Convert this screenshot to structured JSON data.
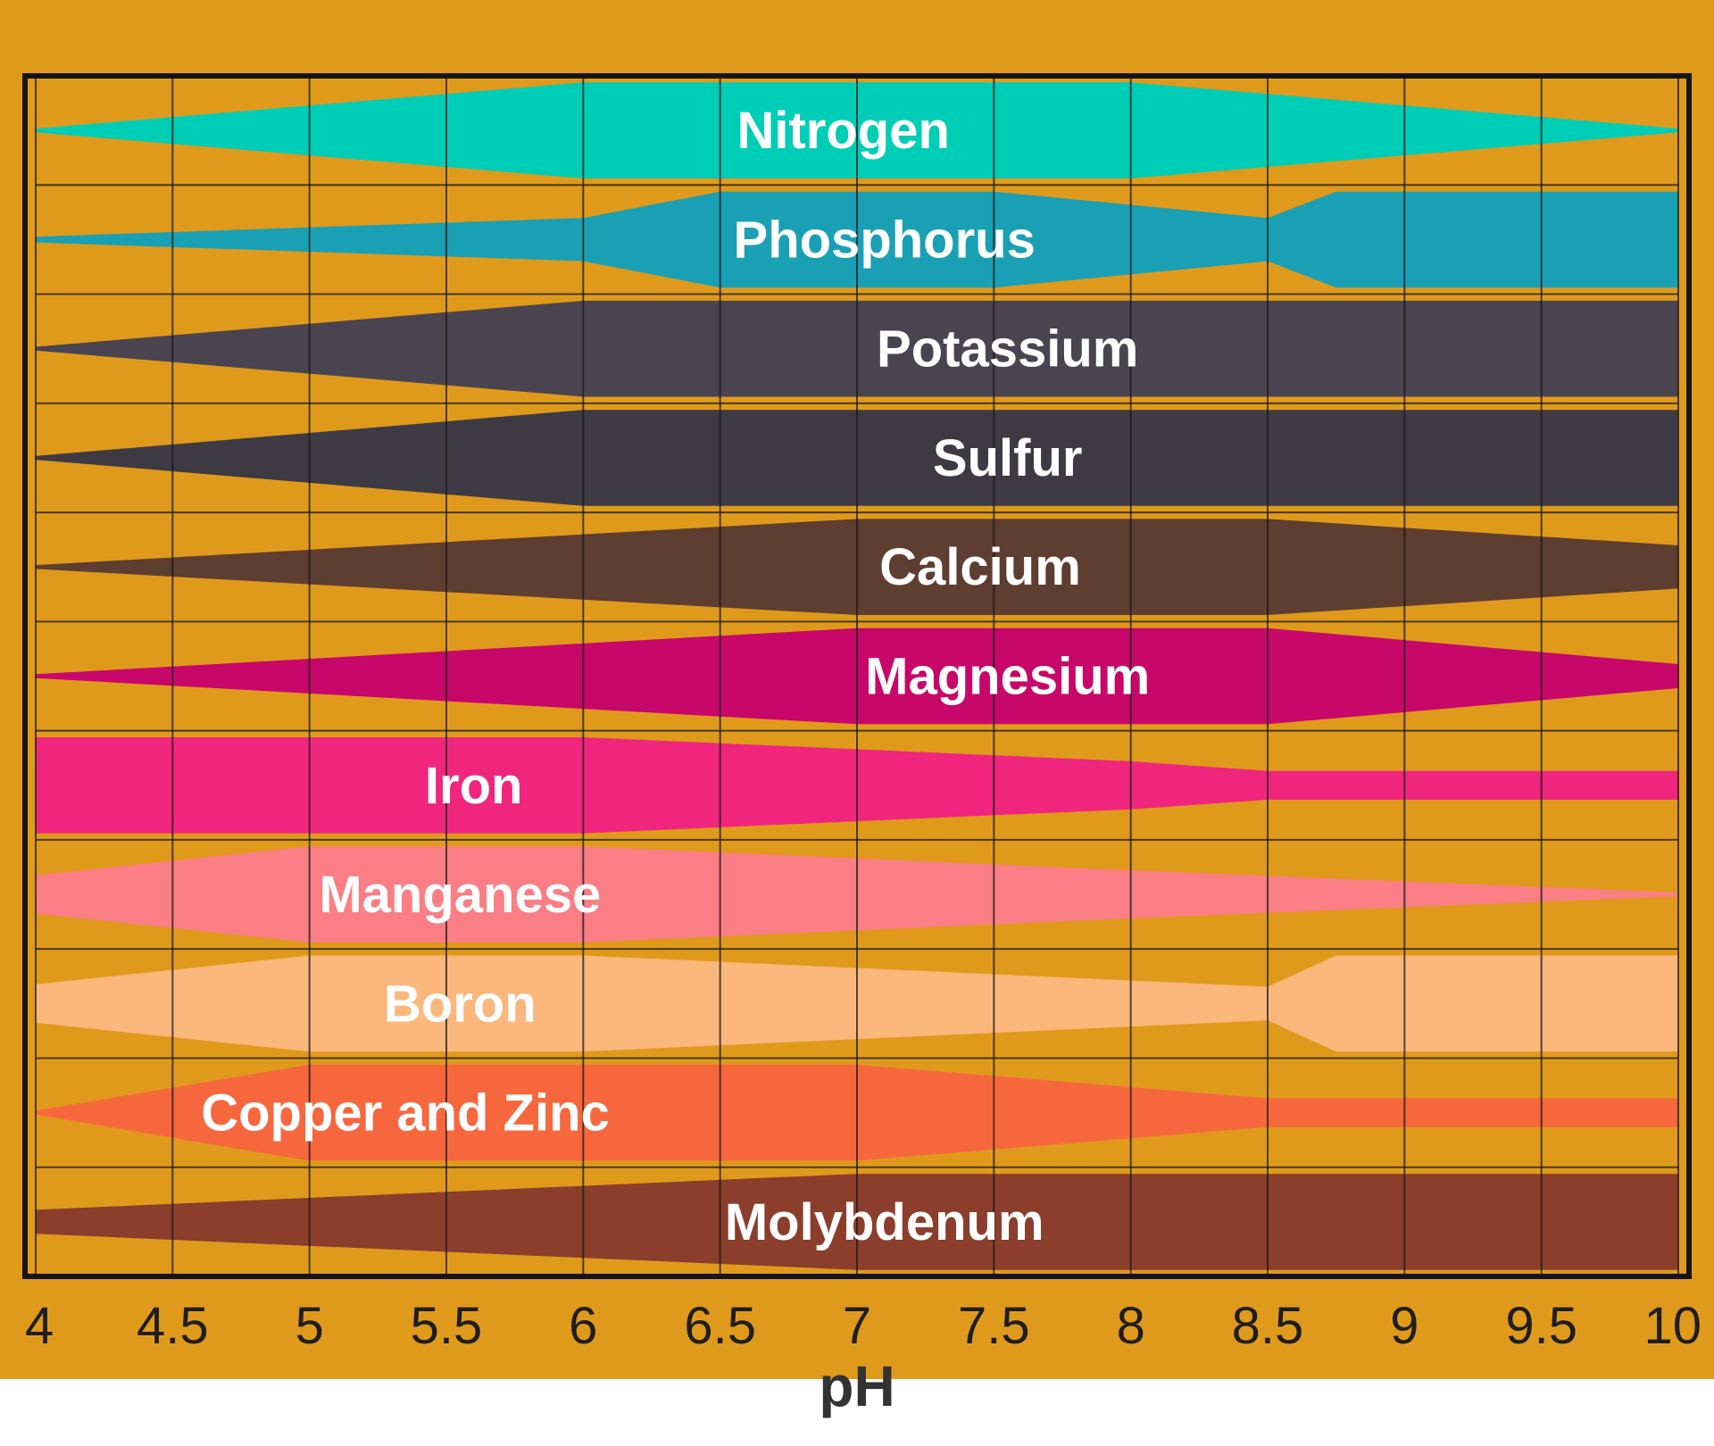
{
  "chart_data": {
    "type": "area",
    "xlabel": "pH",
    "xlim": [
      4,
      10
    ],
    "x_ticks": [
      "4",
      "4.5",
      "5",
      "5.5",
      "6",
      "6.5",
      "7",
      "7.5",
      "8",
      "8.5",
      "9",
      "9.5",
      "10"
    ],
    "grid": true,
    "background_color": "#E09A1B",
    "series": [
      {
        "name": "Nitrogen",
        "color": "#00CDB6",
        "label_x": 6.95,
        "profile": [
          [
            4,
            0.04
          ],
          [
            6,
            1.0
          ],
          [
            8,
            1.0
          ],
          [
            10,
            0.04
          ]
        ]
      },
      {
        "name": "Phosphorus",
        "color": "#1AA0B4",
        "label_x": 7.1,
        "profile": [
          [
            4,
            0.06
          ],
          [
            6,
            0.45
          ],
          [
            6.5,
            1.0
          ],
          [
            7.5,
            1.0
          ],
          [
            8.5,
            0.45
          ],
          [
            8.75,
            1.0
          ],
          [
            10,
            1.0
          ]
        ]
      },
      {
        "name": "Potassium",
        "color": "#4A4450",
        "label_x": 7.55,
        "profile": [
          [
            4,
            0.04
          ],
          [
            6,
            1.0
          ],
          [
            10,
            1.0
          ]
        ]
      },
      {
        "name": "Sulfur",
        "color": "#3E3A44",
        "label_x": 7.55,
        "profile": [
          [
            4,
            0.04
          ],
          [
            6,
            1.0
          ],
          [
            10,
            1.0
          ]
        ]
      },
      {
        "name": "Calcium",
        "color": "#5E3E31",
        "label_x": 7.45,
        "profile": [
          [
            4,
            0.04
          ],
          [
            7,
            1.0
          ],
          [
            8.5,
            1.0
          ],
          [
            10,
            0.45
          ]
        ]
      },
      {
        "name": "Magnesium",
        "color": "#C8076A",
        "label_x": 7.55,
        "profile": [
          [
            4,
            0.04
          ],
          [
            7,
            1.0
          ],
          [
            8.5,
            1.0
          ],
          [
            10,
            0.25
          ]
        ]
      },
      {
        "name": "Iron",
        "color": "#F0257E",
        "label_x": 5.6,
        "profile": [
          [
            4,
            1.0
          ],
          [
            6,
            1.0
          ],
          [
            7,
            0.75
          ],
          [
            8,
            0.5
          ],
          [
            8.5,
            0.3
          ],
          [
            10,
            0.3
          ]
        ]
      },
      {
        "name": "Manganese",
        "color": "#FA7E84",
        "label_x": 5.55,
        "profile": [
          [
            4,
            0.4
          ],
          [
            5,
            1.0
          ],
          [
            6,
            1.0
          ],
          [
            8,
            0.5
          ],
          [
            10,
            0.04
          ]
        ]
      },
      {
        "name": "Boron",
        "color": "#FCB77C",
        "label_x": 5.55,
        "profile": [
          [
            4,
            0.4
          ],
          [
            5,
            1.0
          ],
          [
            6,
            1.0
          ],
          [
            8.5,
            0.35
          ],
          [
            8.75,
            1.0
          ],
          [
            10,
            1.0
          ]
        ]
      },
      {
        "name": "Copper and Zinc",
        "color": "#F7673E",
        "label_x": 5.35,
        "profile": [
          [
            4,
            0.04
          ],
          [
            5,
            1.0
          ],
          [
            7,
            1.0
          ],
          [
            8.5,
            0.3
          ],
          [
            10,
            0.3
          ]
        ]
      },
      {
        "name": "Molybdenum",
        "color": "#8B3E2C",
        "label_x": 7.1,
        "profile": [
          [
            4,
            0.25
          ],
          [
            7,
            1.0
          ],
          [
            10,
            1.0
          ]
        ]
      }
    ]
  }
}
